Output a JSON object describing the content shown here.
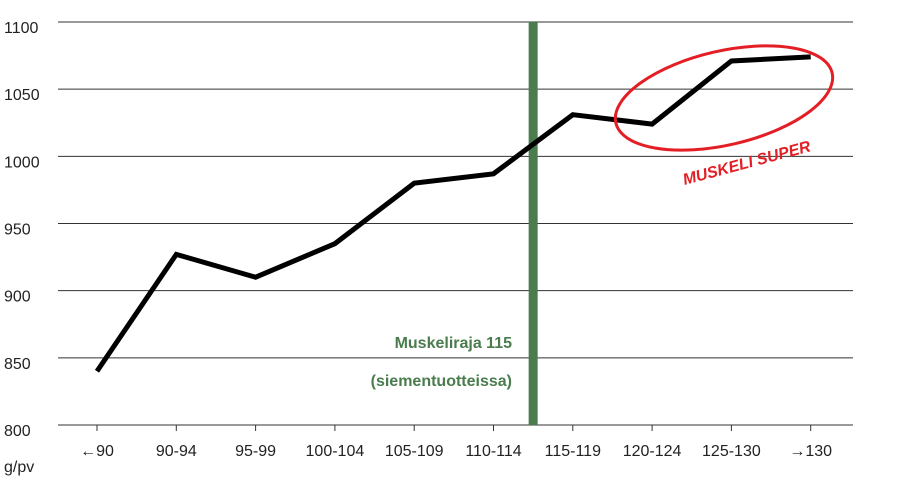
{
  "chart_data": {
    "type": "line",
    "categories": [
      "←90",
      "90-94",
      "95-99",
      "100-104",
      "105-109",
      "110-114",
      "115-119",
      "120-124",
      "125-130",
      "→130"
    ],
    "values": [
      840,
      927,
      910,
      935,
      980,
      987,
      1031,
      1024,
      1071,
      1074
    ],
    "color": "#000000",
    "ylim": [
      800,
      1100
    ],
    "yticks": [
      800,
      850,
      900,
      950,
      1000,
      1050,
      1100
    ],
    "grid": true,
    "y_label": "g/pv",
    "annotations": [
      "Muskeliraja 115",
      "(siementuotteissa)",
      "MUSKELI SUPER"
    ]
  }
}
